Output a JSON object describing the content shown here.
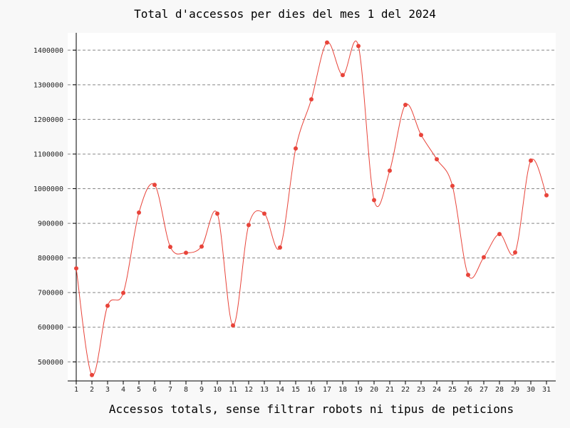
{
  "chart_data": {
    "type": "line",
    "title": "Total d'accessos per dies del mes 1 del 2024",
    "xlabel": "Accessos totals, sense filtrar robots ni tipus de peticions",
    "ylabel": "",
    "x": [
      1,
      2,
      3,
      4,
      5,
      6,
      7,
      8,
      9,
      10,
      11,
      12,
      13,
      14,
      15,
      16,
      17,
      18,
      19,
      20,
      21,
      22,
      23,
      24,
      25,
      26,
      27,
      28,
      29,
      30,
      31
    ],
    "series": [
      {
        "values": [
          770000,
          462000,
          662000,
          699000,
          931000,
          1011000,
          832000,
          815000,
          833000,
          928000,
          605000,
          895000,
          928000,
          830000,
          1116000,
          1258000,
          1422000,
          1328000,
          1412000,
          967000,
          1052000,
          1242000,
          1155000,
          1085000,
          1008000,
          751000,
          802000,
          869000,
          816000,
          1081000,
          981000
        ],
        "color": "#e8443a"
      }
    ],
    "xlim": [
      1,
      31
    ],
    "ylim": [
      445000,
      1450000
    ],
    "y_ticks": [
      500000,
      600000,
      700000,
      800000,
      900000,
      1000000,
      1100000,
      1200000,
      1300000,
      1400000
    ],
    "y_tick_labels": [
      "500000",
      "600000",
      "700000",
      "800000",
      "900000",
      "1000000",
      "1100000",
      "1200000",
      "1300000",
      "1400000"
    ],
    "x_tick_labels": [
      "1",
      "2",
      "3",
      "4",
      "5",
      "6",
      "7",
      "8",
      "9",
      "10",
      "11",
      "12",
      "13",
      "14",
      "15",
      "16",
      "17",
      "18",
      "19",
      "20",
      "21",
      "22",
      "23",
      "24",
      "25",
      "26",
      "27",
      "28",
      "29",
      "30",
      "31"
    ],
    "grid": "horizontal dashed",
    "colors": {
      "background": "#f8f8f8",
      "plot_background": "#ffffff",
      "line": "#e8443a",
      "grid": "#888888"
    }
  }
}
